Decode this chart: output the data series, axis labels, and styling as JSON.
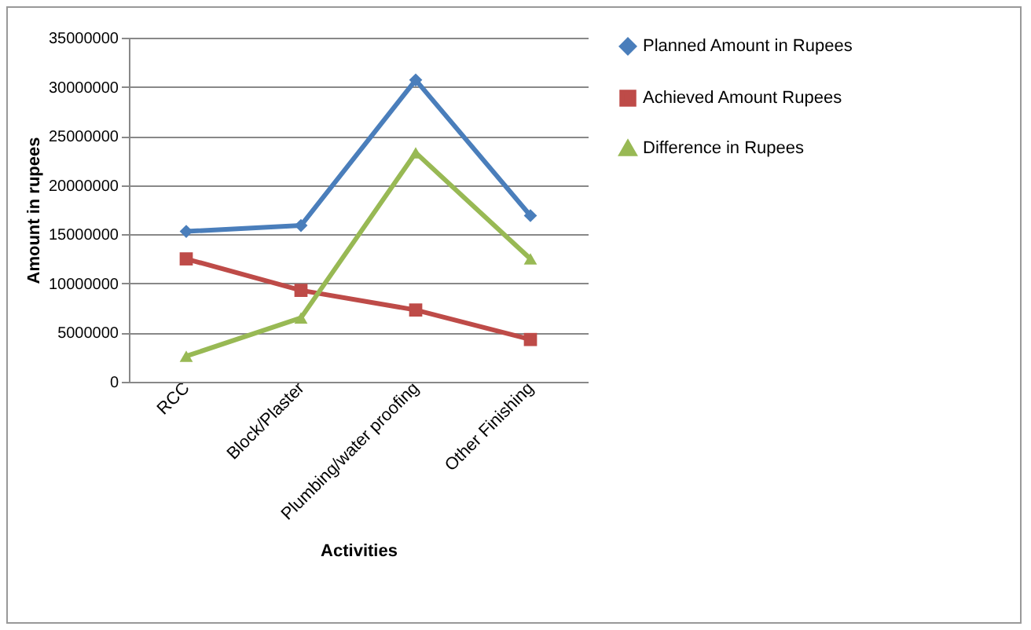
{
  "chart_data": {
    "type": "line",
    "xlabel": "Activities",
    "ylabel": "Amount in rupees",
    "categories": [
      "RCC",
      "Block/Plaster",
      "Plumbing/water proofing",
      "Other Finishing"
    ],
    "series": [
      {
        "name": "Planned Amount in Rupees",
        "color": "#4a7ebb",
        "marker": "diamond",
        "values": [
          15300000,
          15900000,
          30700000,
          16900000
        ]
      },
      {
        "name": "Achieved Amount Rupees",
        "color": "#be4b48",
        "marker": "square",
        "values": [
          12500000,
          9300000,
          7300000,
          4300000
        ]
      },
      {
        "name": "Difference in Rupees",
        "color": "#98b954",
        "marker": "triangle",
        "values": [
          2600000,
          6500000,
          23300000,
          12500000
        ]
      }
    ],
    "ylim": [
      0,
      35000000
    ],
    "yticks": [
      0,
      5000000,
      10000000,
      15000000,
      20000000,
      25000000,
      30000000,
      35000000
    ],
    "grid": "y",
    "legend": "right",
    "line_style": "solid"
  }
}
